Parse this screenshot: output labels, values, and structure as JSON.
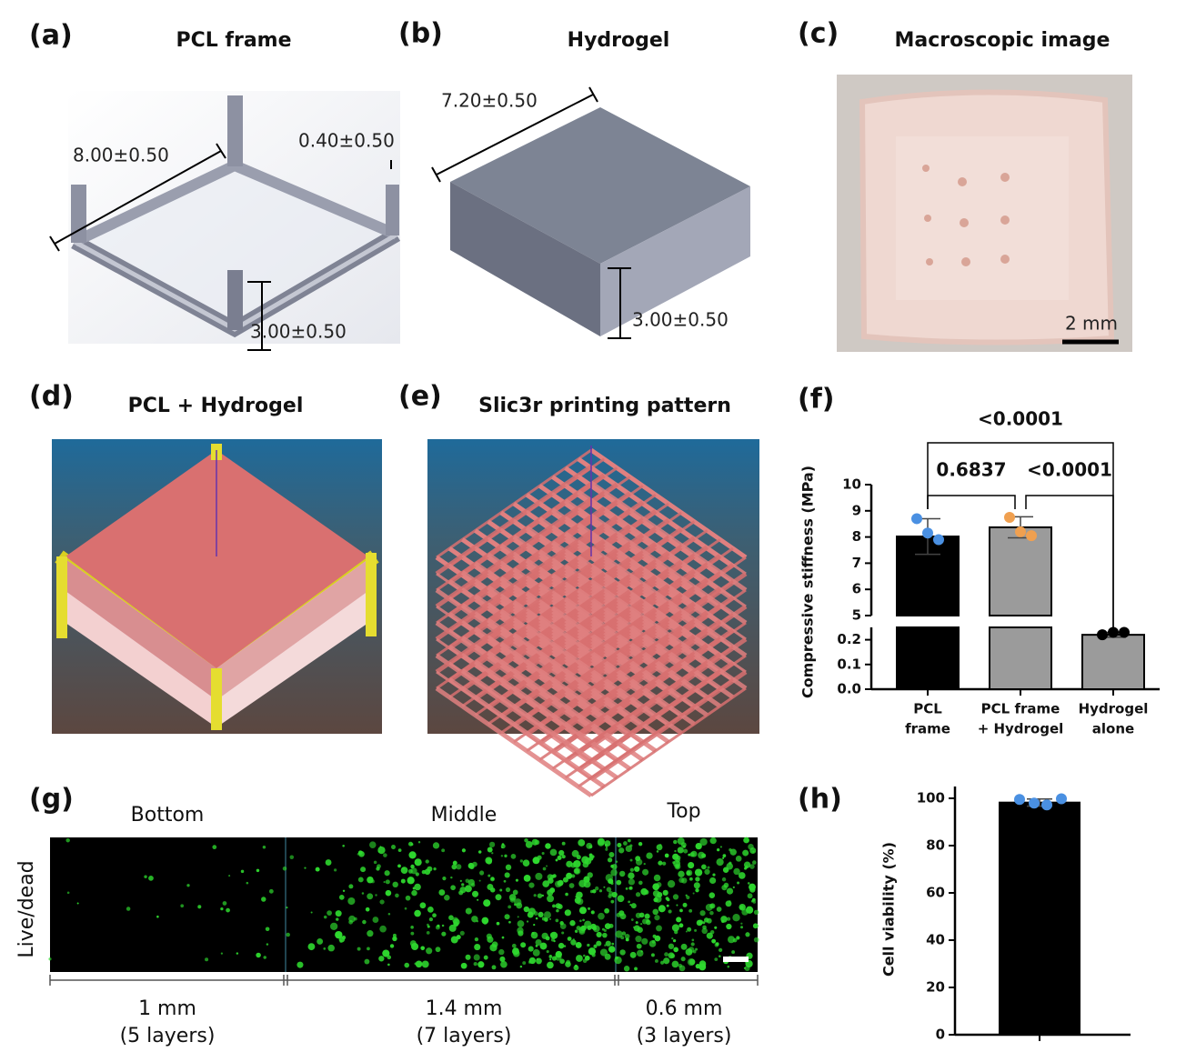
{
  "panels": {
    "a": {
      "label": "(a)",
      "title": "PCL frame",
      "dims": [
        "8.00±0.50",
        "0.40±0.50",
        "3.00±0.50"
      ]
    },
    "b": {
      "label": "(b)",
      "title": "Hydrogel",
      "dims": [
        "7.20±0.50",
        "3.00±0.50"
      ]
    },
    "c": {
      "label": "(c)",
      "title": "Macroscopic image",
      "scale_bar": "2 mm"
    },
    "d": {
      "label": "(d)",
      "title": "PCL + Hydrogel"
    },
    "e": {
      "label": "(e)",
      "title": "Slic3r printing pattern"
    },
    "f": {
      "label": "(f)"
    },
    "g": {
      "label": "(g)",
      "row_label": "Live/dead",
      "sections": [
        {
          "name": "Bottom",
          "size": "1 mm",
          "layers": "(5 layers)"
        },
        {
          "name": "Middle",
          "size": "1.4 mm",
          "layers": "(7 layers)"
        },
        {
          "name": "Top",
          "size": "0.6 mm",
          "layers": "(3 layers)"
        }
      ]
    },
    "h": {
      "label": "(h)"
    }
  },
  "chart_data": [
    {
      "type": "bar",
      "y_label": "Compressive stiffness  (MPa)",
      "categories": [
        [
          "PCL",
          "frame"
        ],
        [
          "PCL frame",
          "+ Hydrogel"
        ],
        [
          "Hydrogel",
          "alone"
        ]
      ],
      "values": [
        8.02,
        8.37,
        0.22
      ],
      "errors": [
        0.68,
        0.4,
        0.01
      ],
      "points": [
        [
          8.7,
          8.15,
          7.9
        ],
        [
          8.75,
          8.2,
          8.05
        ],
        [
          0.22,
          0.23,
          0.23
        ]
      ],
      "colors": [
        "#000000",
        "#9b9b9b",
        "#9b9b9b"
      ],
      "point_colors": [
        "#4a90e2",
        "#f0a050",
        "#000000"
      ],
      "y_segments": [
        {
          "ylim": [
            0,
            0.25
          ],
          "yticks": [
            {
              "value": 0,
              "label": "0.0"
            },
            0.1,
            0.2
          ]
        },
        {
          "ylim": [
            5,
            10
          ],
          "yticks": [
            5,
            6,
            7,
            8,
            9,
            10
          ]
        }
      ],
      "comparisons": [
        {
          "from": 0,
          "to": 2,
          "label": "<0.0001"
        },
        {
          "from": 0,
          "to": 1,
          "label": "0.6837"
        },
        {
          "from": 1,
          "to": 2,
          "label": "<0.0001"
        }
      ]
    },
    {
      "type": "bar",
      "y_label": "Cell viability (%)",
      "values": [
        98.2
      ],
      "errors": [
        1.5
      ],
      "points": [
        [
          99.5,
          98,
          97.2,
          99.8
        ]
      ],
      "colors": [
        "#000000"
      ],
      "point_colors": [
        "#4a90e2"
      ],
      "y_segments": [
        {
          "ylim": [
            0,
            105
          ],
          "yticks": [
            0,
            20,
            40,
            60,
            80,
            100
          ]
        }
      ]
    }
  ]
}
